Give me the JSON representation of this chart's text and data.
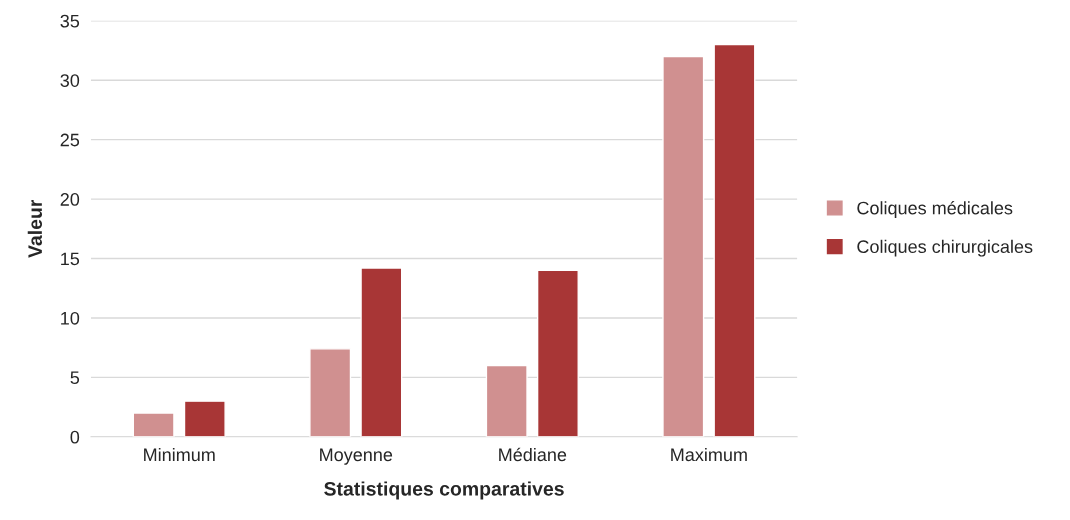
{
  "chart_data": {
    "type": "bar",
    "xlabel": "Statistiques comparatives",
    "ylabel": "Valeur",
    "categories": [
      "Minimum",
      "Moyenne",
      "Médiane",
      "Maximum"
    ],
    "series": [
      {
        "name": "Coliques médicales",
        "color": "#d09090",
        "values": [
          2,
          7.4,
          6,
          32
        ]
      },
      {
        "name": "Coliques chirurgicales",
        "color": "#a83636",
        "values": [
          3,
          14.2,
          14,
          33
        ]
      }
    ],
    "ylim": [
      0,
      35
    ],
    "yticks": [
      0,
      5,
      10,
      15,
      20,
      25,
      30,
      35
    ],
    "grid": "y",
    "legend": "right"
  }
}
